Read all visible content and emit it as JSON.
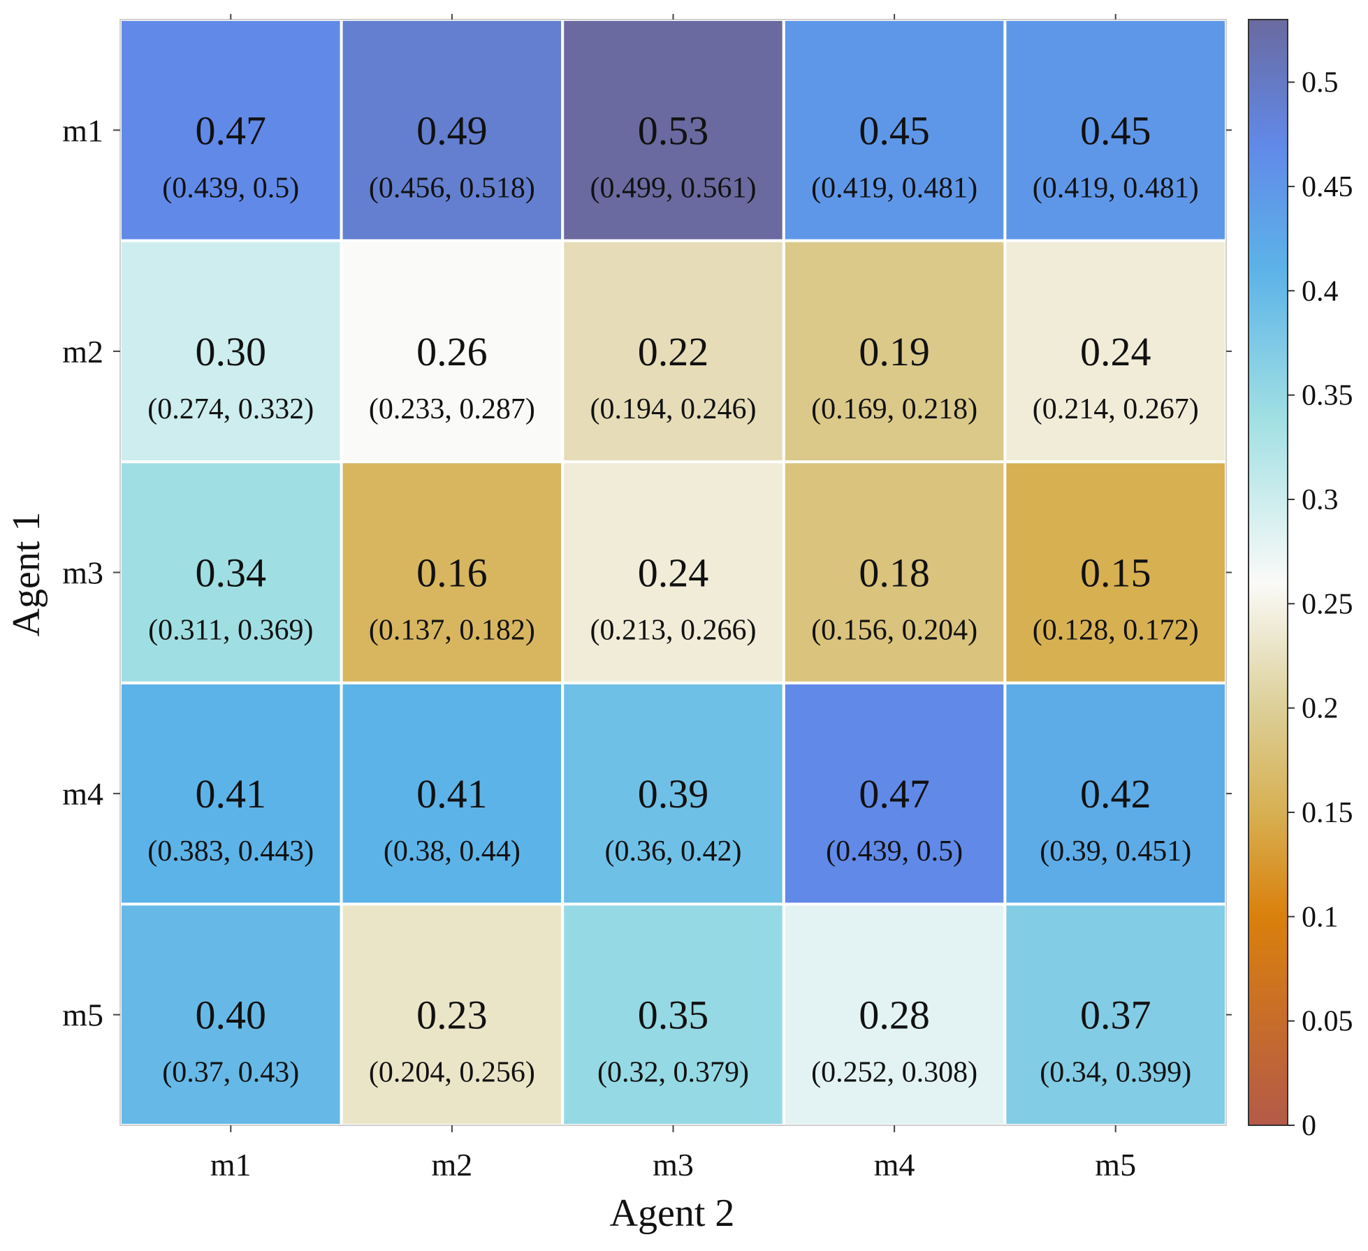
{
  "chart_data": {
    "type": "heatmap",
    "title": "",
    "xlabel": "Agent 2",
    "ylabel": "Agent 1",
    "x_categories": [
      "m1",
      "m2",
      "m3",
      "m4",
      "m5"
    ],
    "y_categories": [
      "m1",
      "m2",
      "m3",
      "m4",
      "m5"
    ],
    "values": [
      [
        "0.47",
        "0.49",
        "0.53",
        "0.45",
        "0.45"
      ],
      [
        "0.30",
        "0.26",
        "0.22",
        "0.19",
        "0.24"
      ],
      [
        "0.34",
        "0.16",
        "0.24",
        "0.18",
        "0.15"
      ],
      [
        "0.41",
        "0.41",
        "0.39",
        "0.47",
        "0.42"
      ],
      [
        "0.40",
        "0.23",
        "0.35",
        "0.28",
        "0.37"
      ]
    ],
    "intervals": [
      [
        "(0.439, 0.5)",
        "(0.456, 0.518)",
        "(0.499, 0.561)",
        "(0.419, 0.481)",
        "(0.419, 0.481)"
      ],
      [
        "(0.274, 0.332)",
        "(0.233, 0.287)",
        "(0.194, 0.246)",
        "(0.169, 0.218)",
        "(0.214, 0.267)"
      ],
      [
        "(0.311, 0.369)",
        "(0.137, 0.182)",
        "(0.213, 0.266)",
        "(0.156, 0.204)",
        "(0.128, 0.172)"
      ],
      [
        "(0.383, 0.443)",
        "(0.38, 0.44)",
        "(0.36, 0.42)",
        "(0.439, 0.5)",
        "(0.39, 0.451)"
      ],
      [
        "(0.37, 0.43)",
        "(0.204, 0.256)",
        "(0.32, 0.379)",
        "(0.252, 0.308)",
        "(0.34, 0.399)"
      ]
    ],
    "colorbar": {
      "range": [
        0,
        0.53
      ],
      "ticks": [
        0,
        0.05,
        0.1,
        0.15,
        0.2,
        0.25,
        0.3,
        0.35,
        0.4,
        0.45,
        0.5
      ],
      "tick_labels": [
        "0",
        "0.05",
        "0.1",
        "0.15",
        "0.2",
        "0.25",
        "0.3",
        "0.35",
        "0.4",
        "0.45",
        "0.5"
      ],
      "colormap": [
        {
          "v": 0.0,
          "color": "#b45a48"
        },
        {
          "v": 0.1,
          "color": "#da800c"
        },
        {
          "v": 0.15,
          "color": "#d7b052"
        },
        {
          "v": 0.2,
          "color": "#dccf98"
        },
        {
          "v": 0.26,
          "color": "#fafaf8"
        },
        {
          "v": 0.34,
          "color": "#9fdfe3"
        },
        {
          "v": 0.41,
          "color": "#5cb3e8"
        },
        {
          "v": 0.47,
          "color": "#6189e8"
        },
        {
          "v": 0.53,
          "color": "#6a6aa0"
        }
      ]
    }
  }
}
